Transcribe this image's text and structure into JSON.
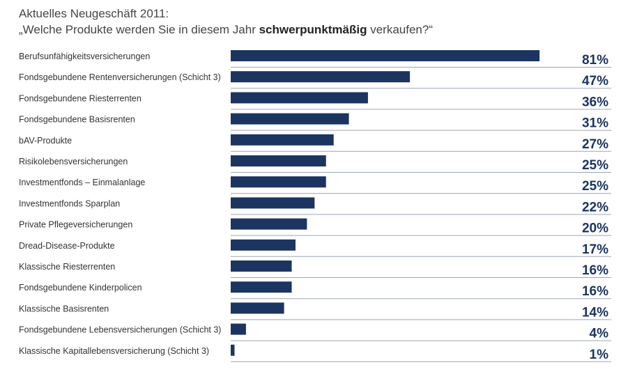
{
  "header": {
    "title": "Aktuelles Neugeschäft 2011:",
    "subtitle_pre": "„Welche Produkte werden Sie in diesem Jahr ",
    "subtitle_bold": "schwerpunktmäßig",
    "subtitle_post": " verkaufen?“"
  },
  "colors": {
    "bar": "#1c3460",
    "value_text": "#1c3460",
    "rule": "#9aa5b8",
    "label_text": "#333333"
  },
  "chart_data": {
    "type": "bar",
    "orientation": "horizontal",
    "title": "Aktuelles Neugeschäft 2011: „Welche Produkte werden Sie in diesem Jahr schwerpunktmäßig verkaufen?“",
    "unit": "%",
    "xlim": [
      0,
      100
    ],
    "categories": [
      "Berufsunfähigkeitsversicherungen",
      "Fondsgebundene Rentenversicherungen (Schicht 3)",
      "Fondsgebundene Riesterrenten",
      "Fondsgebundene Basisrenten",
      "bAV-Produkte",
      "Risikolebensversicherungen",
      "Investmentfonds – Einmalanlage",
      "Investmentfonds Sparplan",
      "Private Pflegeversicherungen",
      "Dread-Disease-Produkte",
      "Klassische Riesterrenten",
      "Fondsgebundene Kinderpolicen",
      "Klassische Basisrenten",
      "Fondsgebundene Lebensversicherungen (Schicht 3)",
      "Klassische Kapitallebensversicherung (Schicht 3)"
    ],
    "values": [
      81,
      47,
      36,
      31,
      27,
      25,
      25,
      22,
      20,
      17,
      16,
      16,
      14,
      4,
      1
    ],
    "value_labels": [
      "81%",
      "47%",
      "36%",
      "31%",
      "27%",
      "25%",
      "25%",
      "22%",
      "20%",
      "17%",
      "16%",
      "16%",
      "14%",
      "4%",
      "1%"
    ],
    "grid": false,
    "legend": "none"
  }
}
